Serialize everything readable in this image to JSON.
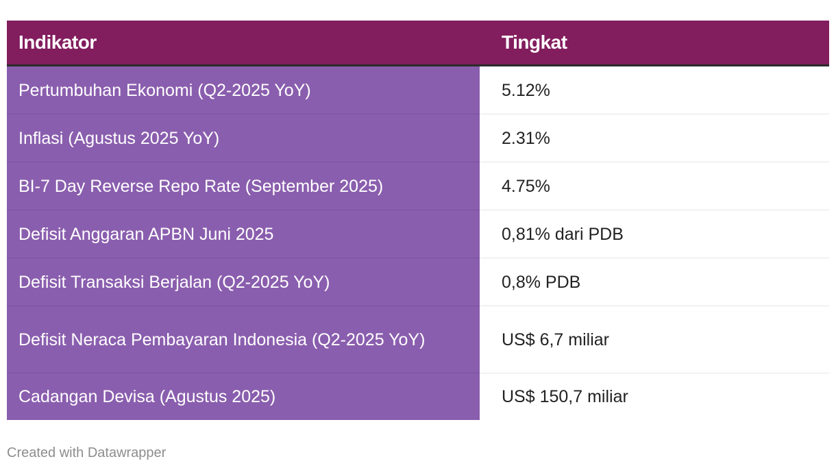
{
  "chart_data": {
    "type": "table",
    "columns": [
      "Indikator",
      "Tingkat"
    ],
    "rows": [
      {
        "indikator": "Pertumbuhan Ekonomi (Q2-2025 YoY)",
        "tingkat": "5.12%"
      },
      {
        "indikator": "Inflasi (Agustus 2025 YoY)",
        "tingkat": "2.31%"
      },
      {
        "indikator": "BI-7 Day Reverse Repo Rate (September 2025)",
        "tingkat": "4.75%"
      },
      {
        "indikator": "Defisit Anggaran APBN Juni 2025",
        "tingkat": "0,81% dari PDB"
      },
      {
        "indikator": "Defisit Transaksi Berjalan (Q2-2025 YoY)",
        "tingkat": "0,8% PDB"
      },
      {
        "indikator": "Defisit Neraca Pembayaran Indonesia (Q2-2025 YoY)",
        "tingkat": "US$ 6,7 miliar"
      },
      {
        "indikator": "Cadangan Devisa (Agustus 2025)",
        "tingkat": "US$ 150,7 miliar"
      }
    ],
    "colors": {
      "header_bg": "#821d5e",
      "first_column_bg": "#8a5eae",
      "header_text": "#ffffff"
    }
  },
  "footer": {
    "credit": "Created with Datawrapper"
  }
}
